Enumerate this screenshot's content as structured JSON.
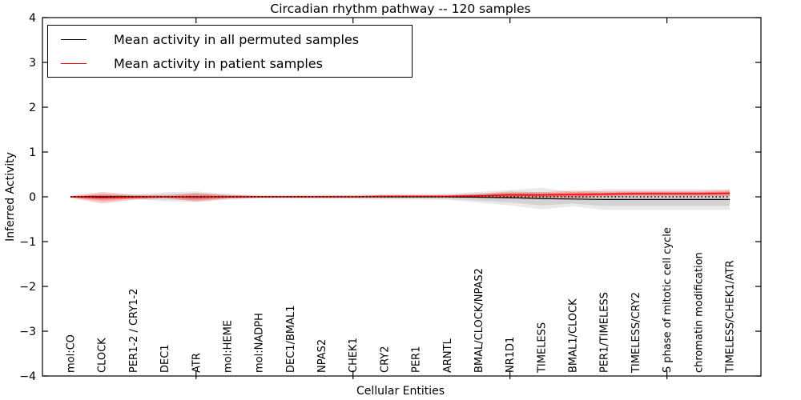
{
  "title": "Circadian rhythm pathway -- 120 samples",
  "chart_data": {
    "type": "line",
    "title": "Circadian rhythm pathway -- 120 samples",
    "xlabel": "Cellular Entities",
    "ylabel": "Inferred Activity",
    "ylim": [
      -4,
      4
    ],
    "yticks": [
      4,
      3,
      2,
      1,
      0,
      -1,
      -2,
      -3,
      -4
    ],
    "ytick_labels": [
      "4",
      "3",
      "2",
      "1",
      "0",
      "−1",
      "−2",
      "−3",
      "−4"
    ],
    "major_x_tick_indices": [
      4,
      9,
      14,
      19
    ],
    "grid": false,
    "legend_position": "upper left",
    "categories": [
      "mol:CO",
      "CLOCK",
      "PER1-2 / CRY1-2",
      "DEC1",
      "ATR",
      "mol:HEME",
      "mol:NADPH",
      "DEC1/BMAL1",
      "NPAS2",
      "CHEK1",
      "CRY2",
      "PER1",
      "ARNTL",
      "BMAL/CLOCK/NPAS2",
      "NR1D1",
      "TIMELESS",
      "BMAL1/CLOCK",
      "PER1/TIMELESS",
      "TIMELESS/CRY2",
      "S phase of mitotic cell cycle",
      "chromatin modification",
      "TIMELESS/CHEK1/ATR"
    ],
    "series": [
      {
        "name": "Mean activity in all permuted samples",
        "color": "#000000",
        "band_color": "#9a9a9a",
        "values": [
          0,
          0,
          0,
          0,
          0,
          0,
          0,
          0,
          0,
          0,
          0,
          0,
          0,
          -0.01,
          -0.02,
          -0.04,
          -0.05,
          -0.06,
          -0.06,
          -0.06,
          -0.06,
          -0.06
        ],
        "band": [
          0.02,
          0.06,
          0.05,
          0.1,
          0.12,
          0.07,
          0.04,
          0.04,
          0.05,
          0.05,
          0.06,
          0.06,
          0.07,
          0.12,
          0.17,
          0.24,
          0.16,
          0.23,
          0.23,
          0.23,
          0.23,
          0.23
        ]
      },
      {
        "name": "Mean activity in patient samples",
        "color": "#ff0000",
        "band_color": "#ff0000",
        "values": [
          0,
          -0.02,
          -0.01,
          0,
          -0.01,
          0,
          0,
          0,
          0,
          0,
          0.01,
          0.01,
          0.01,
          0.02,
          0.04,
          0.04,
          0.05,
          0.06,
          0.07,
          0.07,
          0.07,
          0.08
        ],
        "band": [
          0.02,
          0.13,
          0.06,
          0.03,
          0.1,
          0.04,
          0.02,
          0.02,
          0.02,
          0.02,
          0.03,
          0.03,
          0.03,
          0.05,
          0.08,
          0.06,
          0.09,
          0.06,
          0.06,
          0.06,
          0.06,
          0.07
        ]
      }
    ],
    "zero_line": {
      "value": 0,
      "style": "dotted",
      "color": "#000000"
    }
  }
}
